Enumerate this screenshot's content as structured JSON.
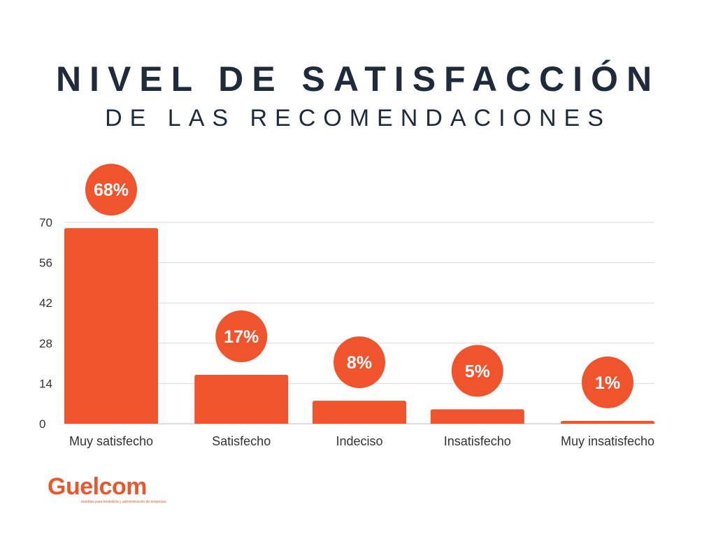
{
  "header": {
    "title_line1": "NIVEL DE SATISFACCIÓN",
    "title_line2": "DE LAS RECOMENDACIONES"
  },
  "brand": {
    "logo_text": "Guelcom",
    "tagline": "muebles para hostelería y administración de empresas"
  },
  "colors": {
    "bar": "#f0542d",
    "label_circle": "#f0542d",
    "grid": "#d9d9d9",
    "text": "#333333"
  },
  "chart_data": {
    "type": "bar",
    "title": "NIVEL DE SATISFACCIÓN DE LAS RECOMENDACIONES",
    "categories": [
      "Muy satisfecho",
      "Satisfecho",
      "Indeciso",
      "Insatisfecho",
      "Muy insatisfecho"
    ],
    "values": [
      68,
      17,
      8,
      5,
      1
    ],
    "data_labels": [
      "68%",
      "17%",
      "8%",
      "5%",
      "1%"
    ],
    "yticks": [
      0,
      14,
      28,
      42,
      56,
      70
    ],
    "ylim": [
      0,
      70
    ],
    "xlabel": "",
    "ylabel": "",
    "grid": true,
    "legend": "none"
  }
}
